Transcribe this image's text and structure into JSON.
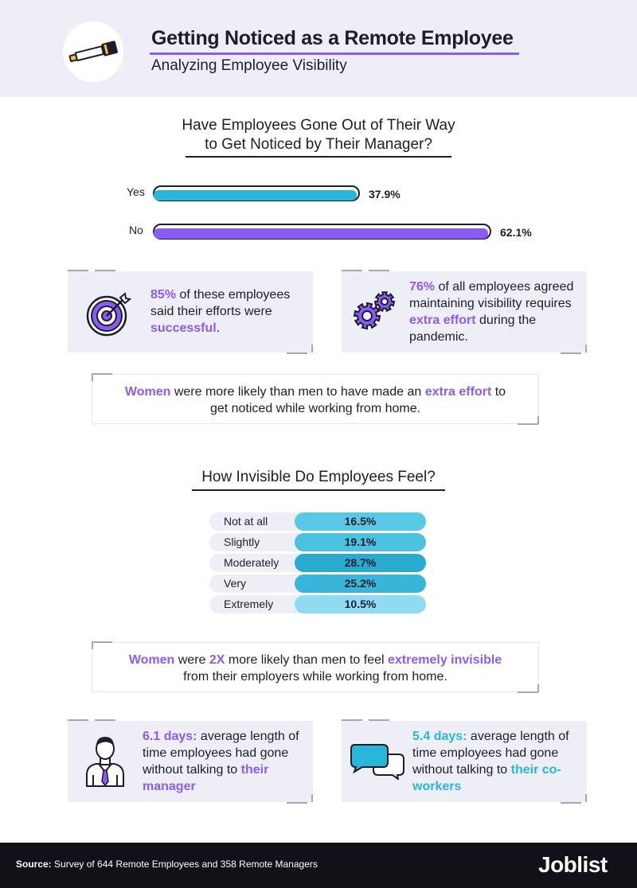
{
  "header": {
    "title": "Getting Noticed as a Remote Employee",
    "subtitle": "Analyzing Employee Visibility",
    "icon": "telescope-icon"
  },
  "chart_data": [
    {
      "type": "bar",
      "title": "Have Employees Gone Out of Their Way to Get Noticed by Their Manager?",
      "title_lines": [
        "Have Employees Gone Out of Their Way",
        "to Get Noticed by Their Manager?"
      ],
      "categories": [
        "Yes",
        "No"
      ],
      "values": [
        37.9,
        62.1
      ],
      "value_labels": [
        "37.9%",
        "62.1%"
      ],
      "colors": [
        "#29b6d9",
        "#8a5cf5"
      ],
      "xlim": [
        0,
        62.1
      ],
      "xlabel": "",
      "ylabel": ""
    },
    {
      "type": "table",
      "title": "How Invisible Do Employees Feel?",
      "categories": [
        "Not at all",
        "Slightly",
        "Moderately",
        "Very",
        "Extremely"
      ],
      "values": [
        16.5,
        19.1,
        28.7,
        25.2,
        10.5
      ],
      "value_labels": [
        "16.5%",
        "19.1%",
        "28.7%",
        "25.2%",
        "10.5%"
      ],
      "colors": [
        "#57c9e4",
        "#4bc2e0",
        "#29abcf",
        "#38b5d8",
        "#8fdcf2"
      ]
    }
  ],
  "stats": {
    "success": {
      "pct": "85%",
      "text_1": " of these employees said their efforts were ",
      "word": "successful",
      "end": ".",
      "icon": "target-icon"
    },
    "effort": {
      "pct": "76%",
      "text_1": " of all employees agreed maintaining visibility requires ",
      "word": "extra effort",
      "text_2": " during the pandemic.",
      "icon": "gears-icon"
    },
    "women_effort": {
      "lead": "Women",
      "text_1": " were more likely than men to have made an ",
      "word": "extra effort",
      "text_2": " to get noticed while working from home."
    },
    "women_invisible": {
      "lead": "Women",
      "text_1": " were ",
      "mult": "2X",
      "text_2": " more likely than men to feel ",
      "word": "extremely invisible",
      "text_3": " from their employers while working from home."
    },
    "manager": {
      "days": "6.1 days:",
      "text_1": " average length of time employees had gone without talking to ",
      "word_1": "their",
      "word_2": "manager",
      "icon": "businessman-icon"
    },
    "coworkers": {
      "days": "5.4 days:",
      "text_1": " average length of time employees had gone without talking to ",
      "word_1": "their",
      "word_2": "co-workers",
      "icon": "chat-bubbles-icon"
    }
  },
  "footer": {
    "source_label": "Source:",
    "source_text": " Survey of 644 Remote Employees and 358 Remote Managers",
    "brand": "Joblist"
  },
  "colors": {
    "purple": "#8a5cf5",
    "blue": "#29b6d9",
    "panel": "#eeeef6",
    "footer": "#111118"
  }
}
